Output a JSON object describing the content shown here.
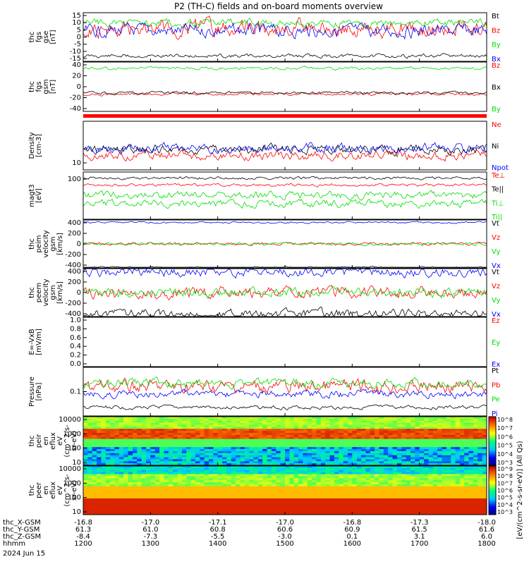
{
  "title": "P2 (TH-C) fields and on-board moments overview",
  "colors": {
    "black": "#000000",
    "red": "#ff0000",
    "green": "#00dd00",
    "blue": "#0000ff"
  },
  "chart_data": [
    {
      "type": "line",
      "id": "fgs-gse",
      "ylabel": [
        "thc",
        "fgs",
        "gse",
        "[nT]"
      ],
      "ylim": [
        -15,
        15
      ],
      "yticks": [
        "15",
        "10",
        "5",
        "0",
        "-5",
        "-10",
        "-15"
      ],
      "series": [
        {
          "name": "Bt",
          "color": "black"
        },
        {
          "name": "Bz",
          "color": "red"
        },
        {
          "name": "By",
          "color": "green"
        },
        {
          "name": "Bx",
          "color": "blue"
        }
      ]
    },
    {
      "type": "line",
      "id": "fgs-gsm",
      "ylabel": [
        "thc",
        "fgs",
        "gsm",
        "[nT]"
      ],
      "ylim": [
        -50,
        50
      ],
      "yticks": [
        "40",
        "20",
        "0",
        "-20",
        "-40"
      ],
      "series": [
        {
          "name": "Bz",
          "color": "red"
        },
        {
          "name": "Bx",
          "color": "black"
        },
        {
          "name": "By",
          "color": "green"
        }
      ]
    },
    {
      "type": "line",
      "id": "density",
      "ylabel": [
        "Density",
        "[cm-3]"
      ],
      "log": true,
      "yticks": [
        "10"
      ],
      "series": [
        {
          "name": "Ne",
          "color": "red"
        },
        {
          "name": "Ni",
          "color": "black"
        },
        {
          "name": "Npot",
          "color": "blue"
        }
      ]
    },
    {
      "type": "line",
      "id": "temp",
      "ylabel": [
        "magt3",
        "[eV]"
      ],
      "log": true,
      "yticks": [
        "100"
      ],
      "series": [
        {
          "name": "Te⊥",
          "color": "red"
        },
        {
          "name": "Te||",
          "color": "black"
        },
        {
          "name": "Ti⊥",
          "color": "green"
        },
        {
          "name": "Ti||",
          "color": "green"
        }
      ]
    },
    {
      "type": "line",
      "id": "peim",
      "ylabel": [
        "thc",
        "peim",
        "velocity",
        "gsm",
        "[km/s]"
      ],
      "ylim": [
        -400,
        400
      ],
      "yticks": [
        "400",
        "200",
        "0",
        "-200",
        "-400"
      ],
      "series": [
        {
          "name": "Vt",
          "color": "black"
        },
        {
          "name": "Vz",
          "color": "red"
        },
        {
          "name": "Vy",
          "color": "green"
        },
        {
          "name": "Vx",
          "color": "blue"
        }
      ]
    },
    {
      "type": "line",
      "id": "peem",
      "ylabel": [
        "thc",
        "peem",
        "velocity",
        "gsm",
        "[km/s]"
      ],
      "ylim": [
        -400,
        400
      ],
      "yticks": [
        "400",
        "200",
        "0",
        "-200",
        "-400"
      ],
      "series": [
        {
          "name": "Vt",
          "color": "black"
        },
        {
          "name": "Vz",
          "color": "red"
        },
        {
          "name": "Vy",
          "color": "green"
        },
        {
          "name": "Vx",
          "color": "blue"
        }
      ]
    },
    {
      "type": "line",
      "id": "efield",
      "ylabel": [
        "E=-VxB",
        "[mV/m]"
      ],
      "ylim": [
        0,
        1
      ],
      "yticks": [
        "1.0",
        "0.8",
        "0.6",
        "0.4",
        "0.2",
        "0.0"
      ],
      "series": [
        {
          "name": "Ez",
          "color": "red"
        },
        {
          "name": "Ey",
          "color": "green"
        },
        {
          "name": "Ex",
          "color": "blue"
        }
      ]
    },
    {
      "type": "line",
      "id": "pressure",
      "ylabel": [
        "Pressure",
        "[nPa]"
      ],
      "log": true,
      "yticks": [
        "0.1"
      ],
      "series": [
        {
          "name": "Pt",
          "color": "black"
        },
        {
          "name": "Pb",
          "color": "red"
        },
        {
          "name": "Pe",
          "color": "green"
        },
        {
          "name": "Pi",
          "color": "blue"
        }
      ]
    },
    {
      "type": "heatmap",
      "id": "peir",
      "ylabel": [
        "thc",
        "peir",
        "en",
        "eflux",
        "eV",
        "(cm^2-s-",
        "sr-eV)"
      ],
      "yticks": [
        "10000",
        "1000",
        "100",
        "10"
      ]
    },
    {
      "type": "heatmap",
      "id": "peer",
      "ylabel": [
        "thc",
        "peer",
        "en",
        "eflux",
        "eV",
        "(cm^2-s-",
        "sr-eV)"
      ],
      "yticks": [
        "10000",
        "1000",
        "100",
        "10"
      ]
    }
  ],
  "colorbar": {
    "label": "[eV/(cm^2-s-sr-eV)] (All Qs)",
    "upper_ticks": [
      "10^8",
      "10^7",
      "10^6",
      "10^5",
      "10^4",
      "10^3"
    ],
    "lower_ticks": [
      "10^9",
      "10^8",
      "10^7",
      "10^6",
      "10^5",
      "10^4",
      "10^3"
    ]
  },
  "xaxis": {
    "rows": [
      {
        "label": "thc_X-GSM",
        "values": [
          "-16.8",
          "-17.0",
          "-17.1",
          "-17.0",
          "-16.8",
          "-17.3",
          "-18.0"
        ]
      },
      {
        "label": "thc_Y-GSM",
        "values": [
          "61.3",
          "61.0",
          "60.8",
          "60.6",
          "60.9",
          "61.5",
          "61.6"
        ]
      },
      {
        "label": "thc_Z-GSM",
        "values": [
          "-8.4",
          "-7.3",
          "-5.5",
          "-3.0",
          "0.1",
          "3.1",
          "6.0"
        ]
      },
      {
        "label": "hhmm",
        "values": [
          "1200",
          "1300",
          "1400",
          "1500",
          "1600",
          "1700",
          "1800"
        ]
      }
    ],
    "date": "2024 Jun 15"
  }
}
